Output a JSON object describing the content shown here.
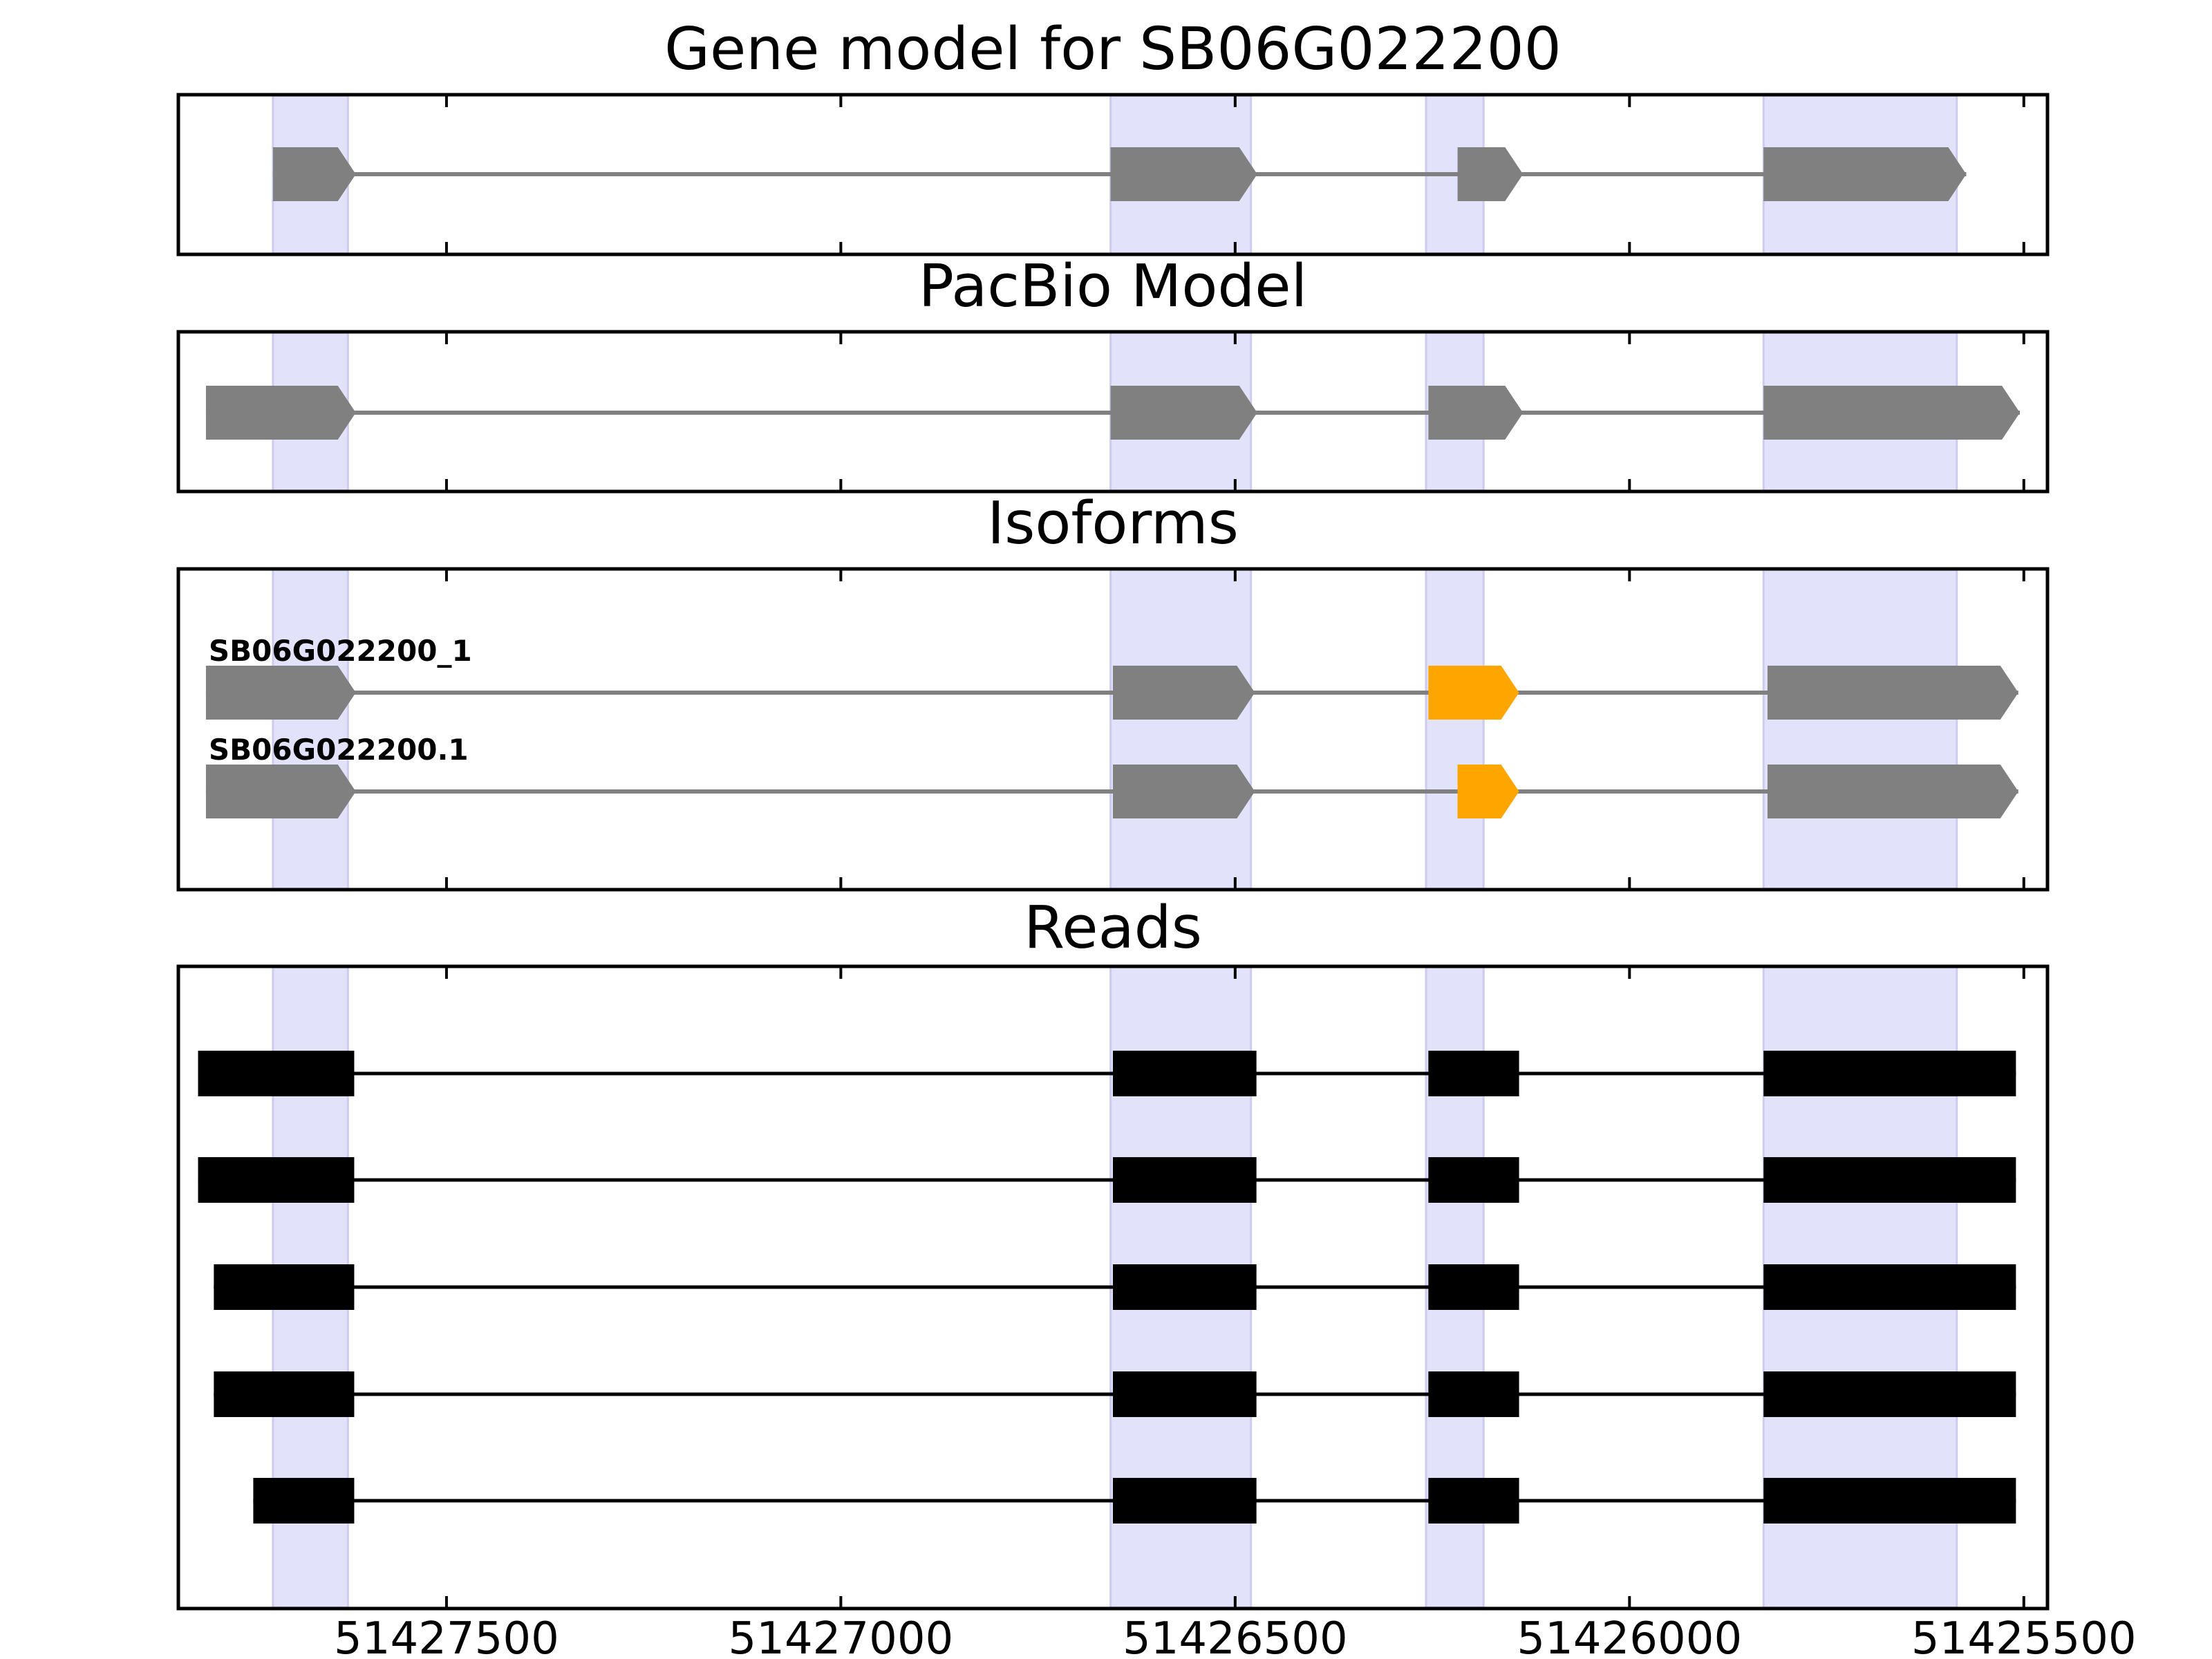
{
  "figure": {
    "axis": {
      "x_min": 51427840,
      "x_max": 51425470,
      "reversed": true,
      "ticks": [
        51427500,
        51427000,
        51426500,
        51426000,
        51425500
      ],
      "tick_labels": [
        "51427500",
        "51427000",
        "51426500",
        "51426000",
        "51425500"
      ]
    },
    "colors": {
      "exon": "#808080",
      "highlight_exon": "#ffa500",
      "read": "#000000",
      "intron": "#808080",
      "band": "#e2e2fb",
      "frame": "#000000"
    },
    "bands": [
      [
        51427720,
        51427625
      ],
      [
        51426658,
        51426480
      ],
      [
        51426258,
        51426185
      ],
      [
        51425830,
        51425585
      ]
    ],
    "panels": [
      {
        "id": "gene-model",
        "title": "Gene model for SB06G022200",
        "kind": "gene",
        "tracks": [
          {
            "label": "",
            "exons": [
              [
                51427720,
                51427615
              ],
              [
                51426658,
                51426472
              ],
              [
                51426218,
                51426135
              ],
              [
                51425830,
                51425573
              ]
            ],
            "highlight": []
          }
        ]
      },
      {
        "id": "pacbio-model",
        "title": "PacBio Model",
        "kind": "gene",
        "tracks": [
          {
            "label": "",
            "exons": [
              [
                51427805,
                51427615
              ],
              [
                51426658,
                51426472
              ],
              [
                51426255,
                51426135
              ],
              [
                51425830,
                51425505
              ]
            ],
            "highlight": []
          }
        ]
      },
      {
        "id": "isoforms",
        "title": "Isoforms",
        "kind": "gene",
        "tracks": [
          {
            "label": "SB06G022200_1",
            "exons": [
              [
                51427805,
                51427615
              ],
              [
                51426655,
                51426475
              ],
              [
                51426255,
                51426140
              ],
              [
                51425825,
                51425507
              ]
            ],
            "highlight": [
              2
            ]
          },
          {
            "label": "SB06G022200.1",
            "exons": [
              [
                51427805,
                51427615
              ],
              [
                51426655,
                51426475
              ],
              [
                51426218,
                51426140
              ],
              [
                51425825,
                51425507
              ]
            ],
            "highlight": [
              2
            ]
          }
        ]
      },
      {
        "id": "reads",
        "title": "Reads",
        "kind": "reads",
        "tracks": [
          {
            "label": "",
            "exons": [
              [
                51427815,
                51427617
              ],
              [
                51426655,
                51426473
              ],
              [
                51426255,
                51426140
              ],
              [
                51425830,
                51425510
              ]
            ],
            "highlight": []
          },
          {
            "label": "",
            "exons": [
              [
                51427815,
                51427617
              ],
              [
                51426655,
                51426473
              ],
              [
                51426255,
                51426140
              ],
              [
                51425830,
                51425510
              ]
            ],
            "highlight": []
          },
          {
            "label": "",
            "exons": [
              [
                51427795,
                51427617
              ],
              [
                51426655,
                51426473
              ],
              [
                51426255,
                51426140
              ],
              [
                51425830,
                51425510
              ]
            ],
            "highlight": []
          },
          {
            "label": "",
            "exons": [
              [
                51427795,
                51427617
              ],
              [
                51426655,
                51426473
              ],
              [
                51426255,
                51426140
              ],
              [
                51425830,
                51425510
              ]
            ],
            "highlight": []
          },
          {
            "label": "",
            "exons": [
              [
                51427745,
                51427617
              ],
              [
                51426655,
                51426473
              ],
              [
                51426255,
                51426140
              ],
              [
                51425830,
                51425510
              ]
            ],
            "highlight": []
          }
        ]
      }
    ]
  }
}
